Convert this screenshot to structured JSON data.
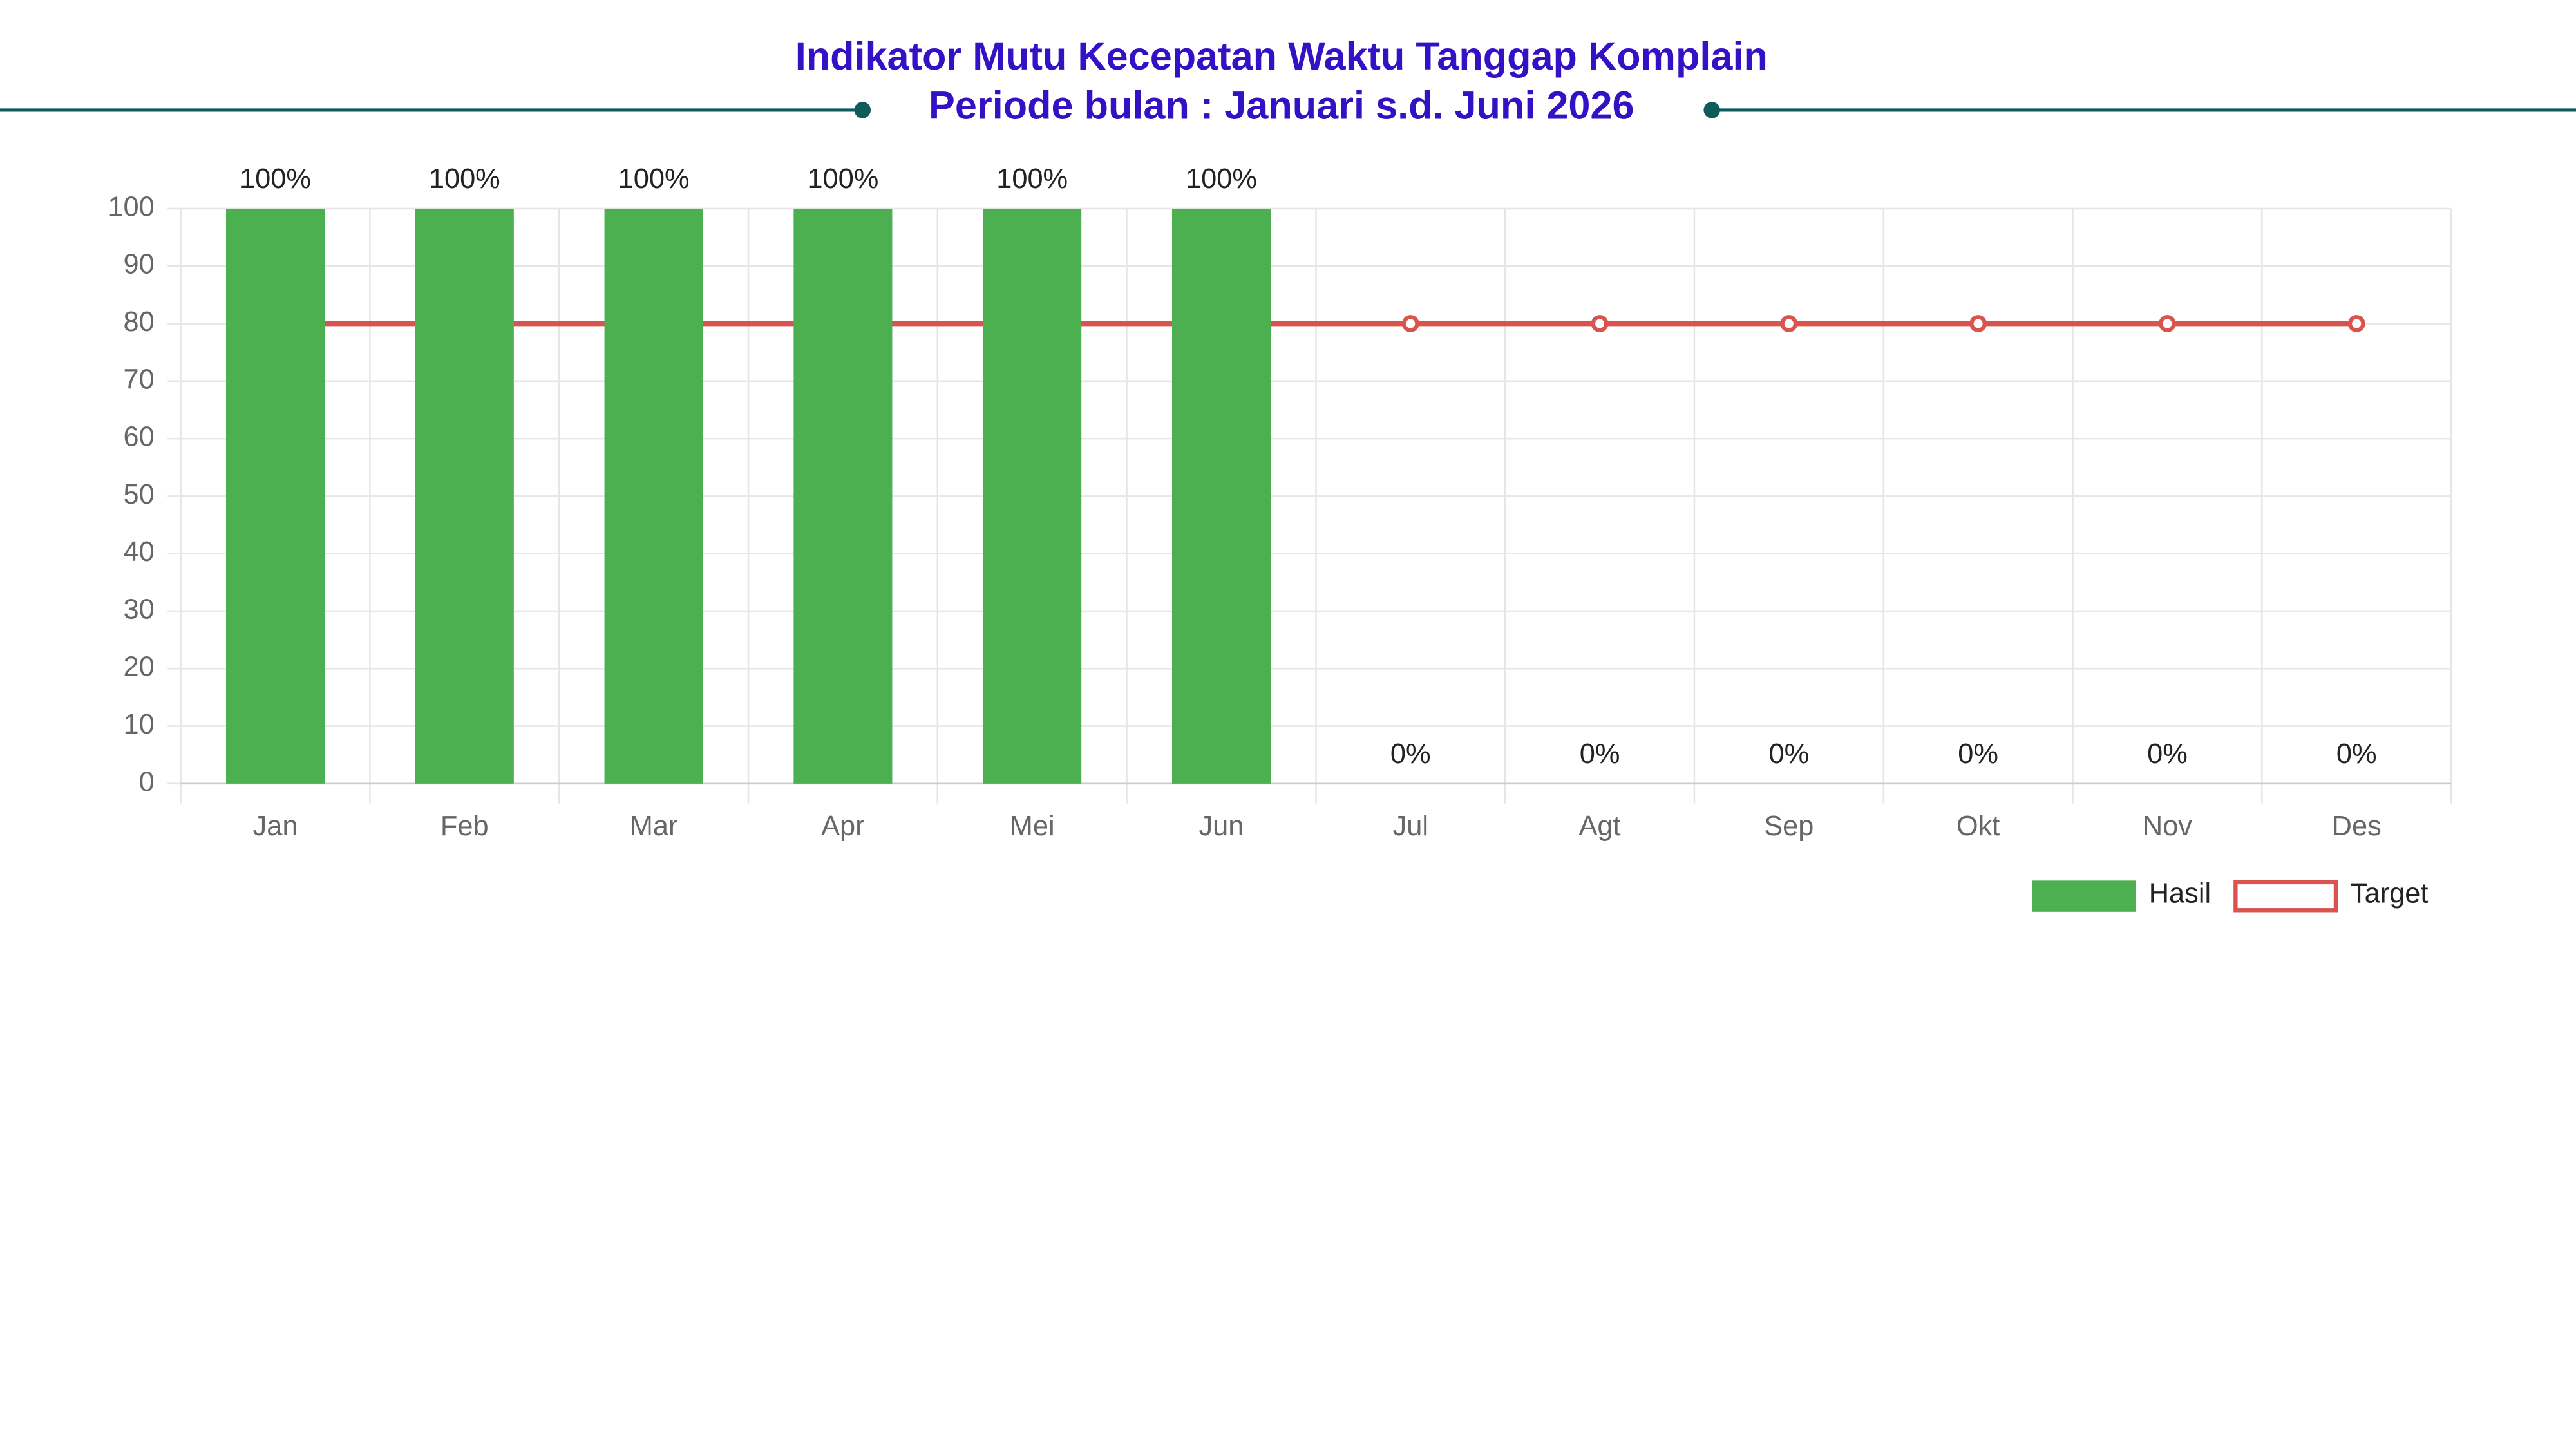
{
  "chart_data": {
    "type": "bar_line",
    "title": "Indikator Mutu Kecepatan Waktu Tanggap Komplain",
    "subtitle": "Periode bulan : Januari s.d. Juni 2026",
    "categories": [
      "Jan",
      "Feb",
      "Mar",
      "Apr",
      "Mei",
      "Jun",
      "Jul",
      "Agt",
      "Sep",
      "Okt",
      "Nov",
      "Des"
    ],
    "series": [
      {
        "name": "Hasil",
        "type": "bar",
        "color": "#4caf50",
        "values": [
          100,
          100,
          100,
          100,
          100,
          100,
          0,
          0,
          0,
          0,
          0,
          0
        ],
        "value_labels": [
          "100%",
          "100%",
          "100%",
          "100%",
          "100%",
          "100%",
          "0%",
          "0%",
          "0%",
          "0%",
          "0%",
          "0%"
        ]
      },
      {
        "name": "Target",
        "type": "line",
        "color": "#d9534f",
        "values": [
          80,
          80,
          80,
          80,
          80,
          80,
          80,
          80,
          80,
          80,
          80,
          80
        ]
      }
    ],
    "ylim": [
      0,
      100
    ],
    "yticks": [
      0,
      10,
      20,
      30,
      40,
      50,
      60,
      70,
      80,
      90,
      100
    ],
    "grid": true,
    "legend": "bottom-right"
  }
}
